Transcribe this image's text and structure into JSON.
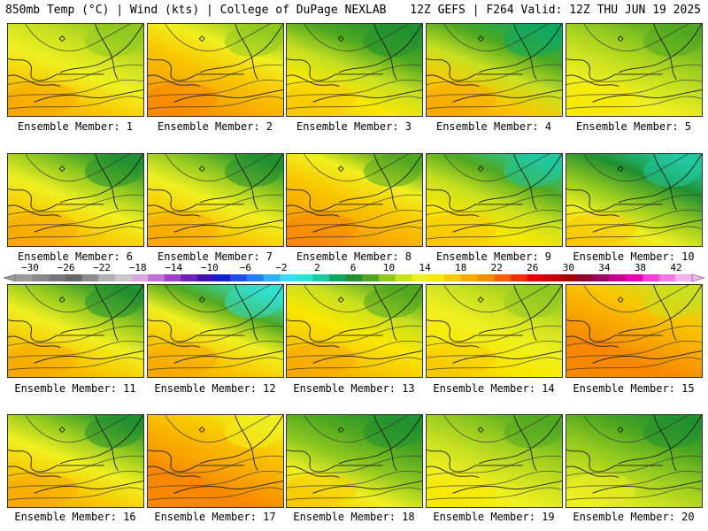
{
  "header": {
    "left": "850mb Temp (°C) | Wind (kts) | College of DuPage NEXLAB",
    "right": "12Z GEFS | F264 Valid: 12Z THU JUN 19 2025"
  },
  "colorbar": {
    "labels": [
      "−30",
      "−26",
      "−22",
      "−18",
      "−14",
      "−10",
      "−6",
      "−2",
      "2",
      "6",
      "10",
      "14",
      "18",
      "22",
      "26",
      "30",
      "34",
      "38",
      "42"
    ],
    "colors": [
      "#9a9a9a",
      "#888888",
      "#777777",
      "#666666",
      "#8c8c8c",
      "#b0b0b0",
      "#c8c8c8",
      "#d8a8e0",
      "#c070d8",
      "#a040c8",
      "#7020b8",
      "#4010b0",
      "#1020c8",
      "#2050e0",
      "#2080f0",
      "#30b0f8",
      "#40d8f8",
      "#30e0d0",
      "#20c8a0",
      "#10a860",
      "#209030",
      "#50a820",
      "#90c820",
      "#c8e020",
      "#f0f020",
      "#f8e800",
      "#f8c800",
      "#f8a800",
      "#f88800",
      "#f06000",
      "#e83000",
      "#e00000",
      "#c00000",
      "#a00000",
      "#900030",
      "#a00060",
      "#c00090",
      "#e000b8",
      "#f040d8",
      "#f878e8",
      "#f8b0f0"
    ]
  },
  "members": [
    {
      "label": "Ensemble Member: 1",
      "colors": [
        "#90c820",
        "#c8e020",
        "#f0f020",
        "#f8c800",
        "#f8a800"
      ]
    },
    {
      "label": "Ensemble Member: 2",
      "colors": [
        "#90c820",
        "#f0f020",
        "#f8c800",
        "#f8a800",
        "#f88800"
      ]
    },
    {
      "label": "Ensemble Member: 3",
      "colors": [
        "#209030",
        "#50a820",
        "#c8e020",
        "#f8e800",
        "#f8c800"
      ]
    },
    {
      "label": "Ensemble Member: 4",
      "colors": [
        "#10a860",
        "#50a820",
        "#c8e020",
        "#f8c800",
        "#f8a800"
      ]
    },
    {
      "label": "Ensemble Member: 5",
      "colors": [
        "#50a820",
        "#90c820",
        "#c8e020",
        "#f0f020",
        "#f8e800"
      ]
    },
    {
      "label": "Ensemble Member: 6",
      "colors": [
        "#209030",
        "#90c820",
        "#f0f020",
        "#f8c800",
        "#f8a800"
      ]
    },
    {
      "label": "Ensemble Member: 7",
      "colors": [
        "#209030",
        "#90c820",
        "#f0f020",
        "#f8c800",
        "#f8a800"
      ]
    },
    {
      "label": "Ensemble Member: 8",
      "colors": [
        "#50a820",
        "#f0f020",
        "#f8c800",
        "#f8a800",
        "#f88800"
      ]
    },
    {
      "label": "Ensemble Member: 9",
      "colors": [
        "#20c8a0",
        "#50a820",
        "#c8e020",
        "#f8e800",
        "#f8c800"
      ]
    },
    {
      "label": "Ensemble Member: 10",
      "colors": [
        "#20c8a0",
        "#209030",
        "#90c820",
        "#f0f020",
        "#f8c800"
      ]
    },
    {
      "label": "Ensemble Member: 11",
      "colors": [
        "#209030",
        "#90c820",
        "#f0f020",
        "#f8c800",
        "#f8a800"
      ]
    },
    {
      "label": "Ensemble Member: 12",
      "colors": [
        "#30e0d0",
        "#50a820",
        "#f0f020",
        "#f8c800",
        "#f8a800"
      ]
    },
    {
      "label": "Ensemble Member: 13",
      "colors": [
        "#50a820",
        "#c8e020",
        "#f8e800",
        "#f8c800",
        "#f8a800"
      ]
    },
    {
      "label": "Ensemble Member: 14",
      "colors": [
        "#90c820",
        "#c8e020",
        "#f0f020",
        "#f8e800",
        "#f8c800"
      ]
    },
    {
      "label": "Ensemble Member: 15",
      "colors": [
        "#c8e020",
        "#f8c800",
        "#f8a800",
        "#f88800",
        "#f88800"
      ]
    },
    {
      "label": "Ensemble Member: 16",
      "colors": [
        "#209030",
        "#90c820",
        "#f0f020",
        "#f8c800",
        "#f8a800"
      ]
    },
    {
      "label": "Ensemble Member: 17",
      "colors": [
        "#f0f020",
        "#f8c800",
        "#f8a800",
        "#f88800",
        "#f88800"
      ]
    },
    {
      "label": "Ensemble Member: 18",
      "colors": [
        "#209030",
        "#50a820",
        "#90c820",
        "#f0f020",
        "#f8c800"
      ]
    },
    {
      "label": "Ensemble Member: 19",
      "colors": [
        "#50a820",
        "#90c820",
        "#c8e020",
        "#f0f020",
        "#f8e800"
      ]
    },
    {
      "label": "Ensemble Member: 20",
      "colors": [
        "#209030",
        "#50a820",
        "#90c820",
        "#c8e020",
        "#f0f020"
      ]
    }
  ]
}
